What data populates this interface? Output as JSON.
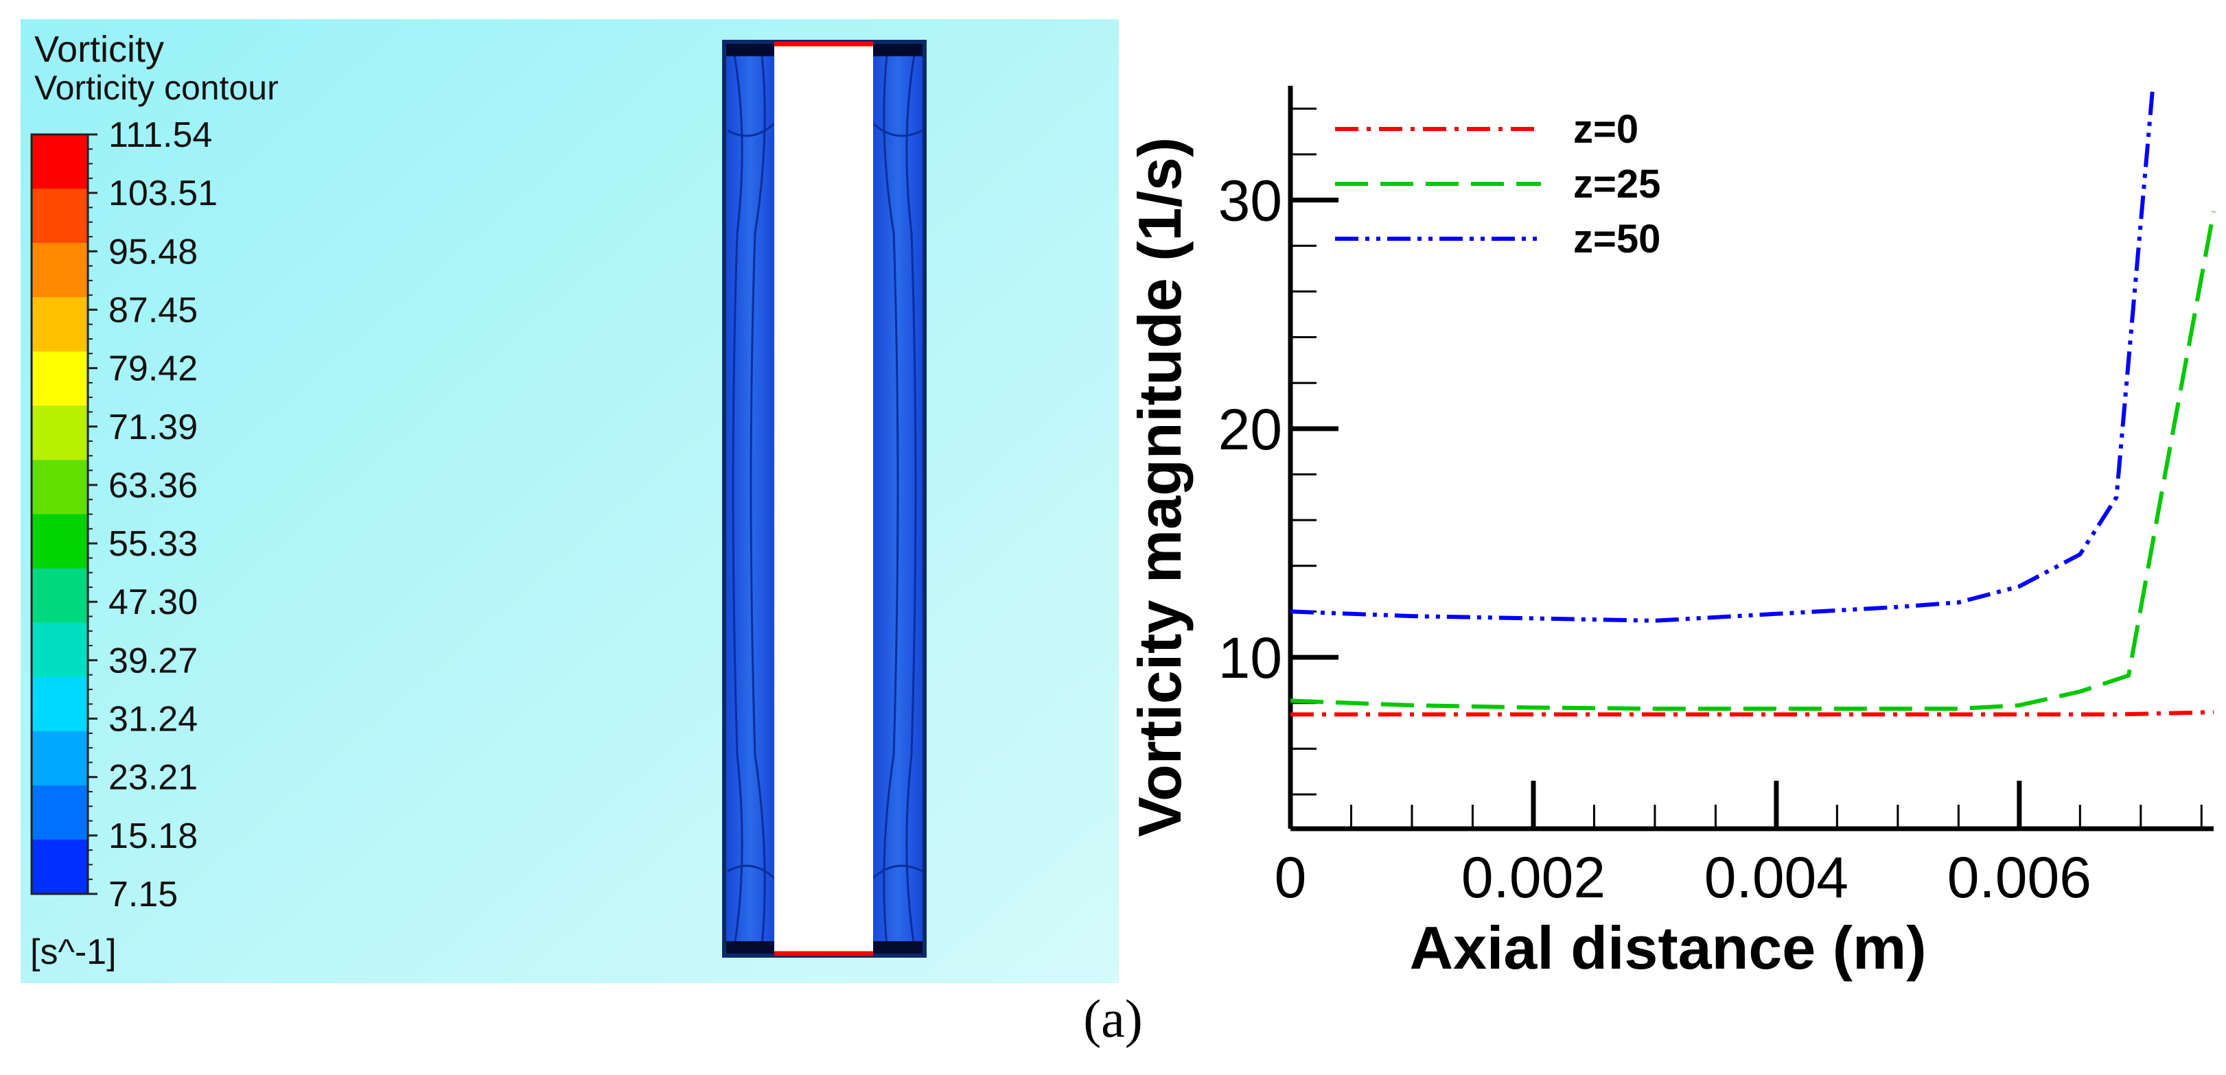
{
  "caption": "(a)",
  "contour_panel": {
    "title": "Vorticity",
    "subtitle": "Vorticity contour",
    "unit": "[s^-1]",
    "background_color": "#a6f4f7",
    "colorbar_levels": [
      "111.54",
      "103.51",
      "95.48",
      "87.45",
      "79.42",
      "71.39",
      "63.36",
      "55.33",
      "47.30",
      "39.27",
      "31.24",
      "23.21",
      "15.18",
      "7.15"
    ],
    "colorbar_colors": [
      "#ff0000",
      "#ff4a00",
      "#ff8a00",
      "#ffc000",
      "#ffff00",
      "#b8f000",
      "#60e000",
      "#00d400",
      "#00d880",
      "#00e0c0",
      "#00d8ff",
      "#00a8ff",
      "#0070ff",
      "#0030ff"
    ],
    "domain_fill_color": "#1f5fe0",
    "domain_edge_color": "#1040c0",
    "channel_color": "#ffffff",
    "inlet_color": "#ff0000"
  },
  "chart_data": {
    "type": "line",
    "xlabel": "Axial distance (m)",
    "ylabel": "Vorticity magnitude (1/s)",
    "xlim": [
      0,
      0.0076
    ],
    "ylim": [
      2.5,
      35
    ],
    "xticks": [
      0,
      0.002,
      0.004,
      0.006
    ],
    "xtick_labels": [
      "0",
      "0.002",
      "0.004",
      "0.006"
    ],
    "yticks": [
      10,
      20,
      30
    ],
    "ytick_labels": [
      "10",
      "20",
      "30"
    ],
    "legend_position": "top-left",
    "grid": false,
    "series": [
      {
        "name": "z=0",
        "color": "#ff0000",
        "dash": "dashdot",
        "x": [
          0,
          0.001,
          0.002,
          0.003,
          0.004,
          0.005,
          0.006,
          0.0068,
          0.0076
        ],
        "y": [
          7.5,
          7.5,
          7.5,
          7.5,
          7.5,
          7.5,
          7.5,
          7.5,
          7.6
        ]
      },
      {
        "name": "z=25",
        "color": "#00c800",
        "dash": "dashed",
        "x": [
          0,
          0.001,
          0.002,
          0.003,
          0.004,
          0.005,
          0.0055,
          0.006,
          0.0065,
          0.0069,
          0.0072,
          0.0076
        ],
        "y": [
          8.1,
          7.9,
          7.8,
          7.75,
          7.75,
          7.75,
          7.75,
          7.9,
          8.5,
          9.2,
          18.0,
          29.5
        ]
      },
      {
        "name": "z=50",
        "color": "#0000ff",
        "dash": "dashdotdot",
        "x": [
          0,
          0.001,
          0.002,
          0.003,
          0.004,
          0.005,
          0.0055,
          0.006,
          0.0065,
          0.0068,
          0.0071
        ],
        "y": [
          12.0,
          11.8,
          11.7,
          11.6,
          11.9,
          12.2,
          12.4,
          13.1,
          14.5,
          17.0,
          35.0
        ]
      }
    ]
  }
}
